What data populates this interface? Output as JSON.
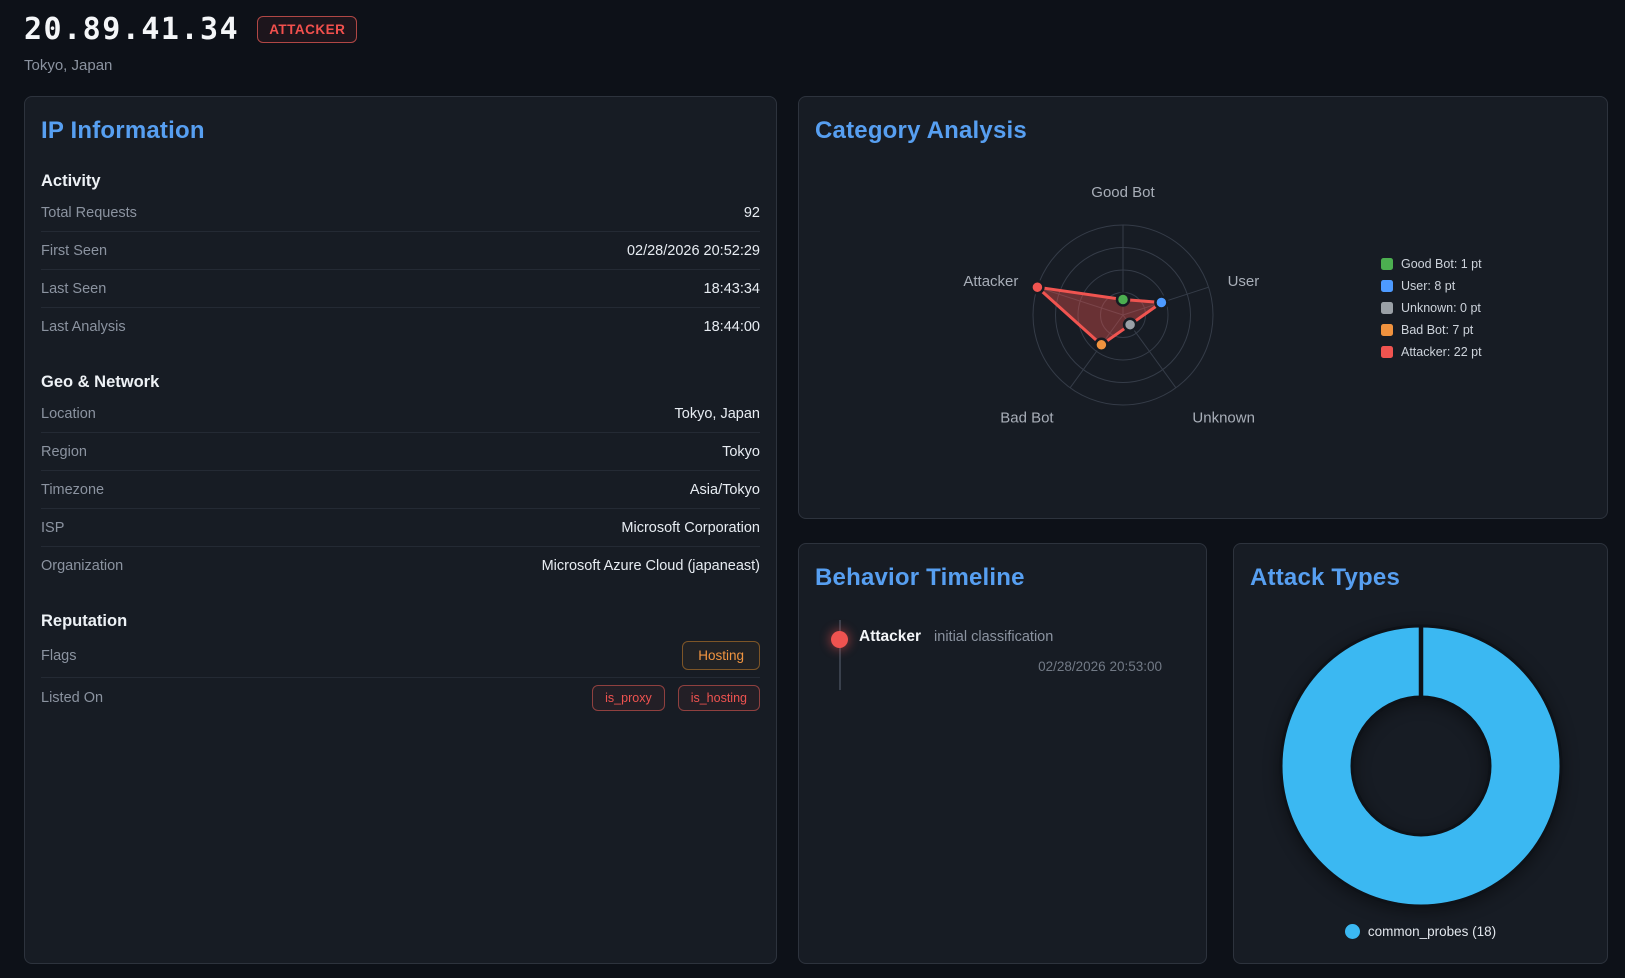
{
  "header": {
    "ip": "20.89.41.34",
    "badge": "ATTACKER",
    "location": "Tokyo, Japan"
  },
  "ip_information": {
    "title": "IP Information",
    "sections": [
      {
        "heading": "Activity",
        "rows": [
          {
            "label": "Total Requests",
            "value": "92"
          },
          {
            "label": "First Seen",
            "value": "02/28/2026 20:52:29"
          },
          {
            "label": "Last Seen",
            "value": "18:43:34"
          },
          {
            "label": "Last Analysis",
            "value": "18:44:00"
          }
        ]
      },
      {
        "heading": "Geo & Network",
        "rows": [
          {
            "label": "Location",
            "value": "Tokyo, Japan"
          },
          {
            "label": "Region",
            "value": "Tokyo"
          },
          {
            "label": "Timezone",
            "value": "Asia/Tokyo"
          },
          {
            "label": "ISP",
            "value": "Microsoft Corporation"
          },
          {
            "label": "Organization",
            "value": "Microsoft Azure Cloud (japaneast)"
          }
        ]
      },
      {
        "heading": "Reputation",
        "rows": [
          {
            "label": "Flags",
            "badges": [
              {
                "text": "Hosting",
                "style": "warning"
              }
            ]
          },
          {
            "label": "Listed On",
            "badges": [
              {
                "text": "is_proxy",
                "style": "danger"
              },
              {
                "text": "is_hosting",
                "style": "danger"
              }
            ]
          }
        ]
      }
    ]
  },
  "behavior_timeline": {
    "title": "Behavior Timeline",
    "events": [
      {
        "category": "Attacker",
        "description": "initial classification",
        "timestamp": "02/28/2026 20:53:00",
        "color": "#f05350"
      }
    ]
  },
  "chart_data": [
    {
      "type": "radar",
      "title": "Category Analysis",
      "categories": [
        "Good Bot",
        "User",
        "Unknown",
        "Bad Bot",
        "Attacker"
      ],
      "values": [
        1,
        8,
        0,
        7,
        22
      ],
      "unit": "pt",
      "value_max": 22,
      "rings": 4,
      "grid": "circular",
      "fill_color": "rgba(240,84,80,0.38)",
      "stroke_color": "#f05450",
      "point_colors": [
        "#4caf50",
        "#4d9aff",
        "#9aa0a6",
        "#f0923e",
        "#f05450"
      ],
      "legend_position": "right",
      "legend": [
        {
          "label": "Good Bot: 1 pt",
          "color": "#4caf50"
        },
        {
          "label": "User: 8 pt",
          "color": "#4d9aff"
        },
        {
          "label": "Unknown: 0 pt",
          "color": "#9aa0a6"
        },
        {
          "label": "Bad Bot: 7 pt",
          "color": "#f0923e"
        },
        {
          "label": "Attacker: 22 pt",
          "color": "#f05450"
        }
      ]
    },
    {
      "type": "donut",
      "title": "Attack Types",
      "categories": [
        "common_probes"
      ],
      "values": [
        18
      ],
      "colors": [
        "#3bb8f2"
      ],
      "legend_position": "bottom",
      "legend": [
        {
          "label": "common_probes (18)",
          "color": "#3bb8f2"
        }
      ]
    }
  ],
  "colors": {
    "page_background": "#0d1118",
    "panel_background": "#171c24",
    "panel_border": "#2d333d",
    "accent_blue": "#579ff1",
    "danger_red": "#ef5350",
    "warning_orange": "#f09440",
    "donut_blue": "#3bb8f2",
    "muted_text": "#8b93a0"
  }
}
